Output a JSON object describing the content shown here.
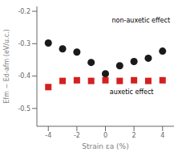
{
  "chart_data": {
    "type": "scatter",
    "xlabel": "Strain εa (%)",
    "ylabel": "Efm − Ed-afm (eV/u.c.)",
    "xlim": [
      -4.8,
      4.8
    ],
    "ylim": [
      -0.555,
      -0.185
    ],
    "xticks": [
      -4,
      -2,
      0,
      2,
      4
    ],
    "yticks": [
      -0.5,
      -0.4,
      -0.3,
      -0.2
    ],
    "x": [
      -4.0,
      -3.0,
      -2.0,
      -1.0,
      0.0,
      1.0,
      2.0,
      3.0,
      4.0
    ],
    "series": [
      {
        "color": "#1a1a1a",
        "marker": "circle",
        "values": [
          -0.298,
          -0.316,
          -0.326,
          -0.358,
          -0.393,
          -0.368,
          -0.355,
          -0.345,
          -0.323
        ]
      },
      {
        "color": "#d42020",
        "marker": "square",
        "values": [
          -0.434,
          -0.415,
          -0.413,
          -0.415,
          -0.413,
          -0.415,
          -0.413,
          -0.415,
          -0.413
        ]
      }
    ],
    "annotations": [
      {
        "text": "non-auxetic effect",
        "x": 0.45,
        "y": -0.228
      },
      {
        "text": "auxetic effect",
        "x": 0.3,
        "y": -0.448
      }
    ]
  }
}
